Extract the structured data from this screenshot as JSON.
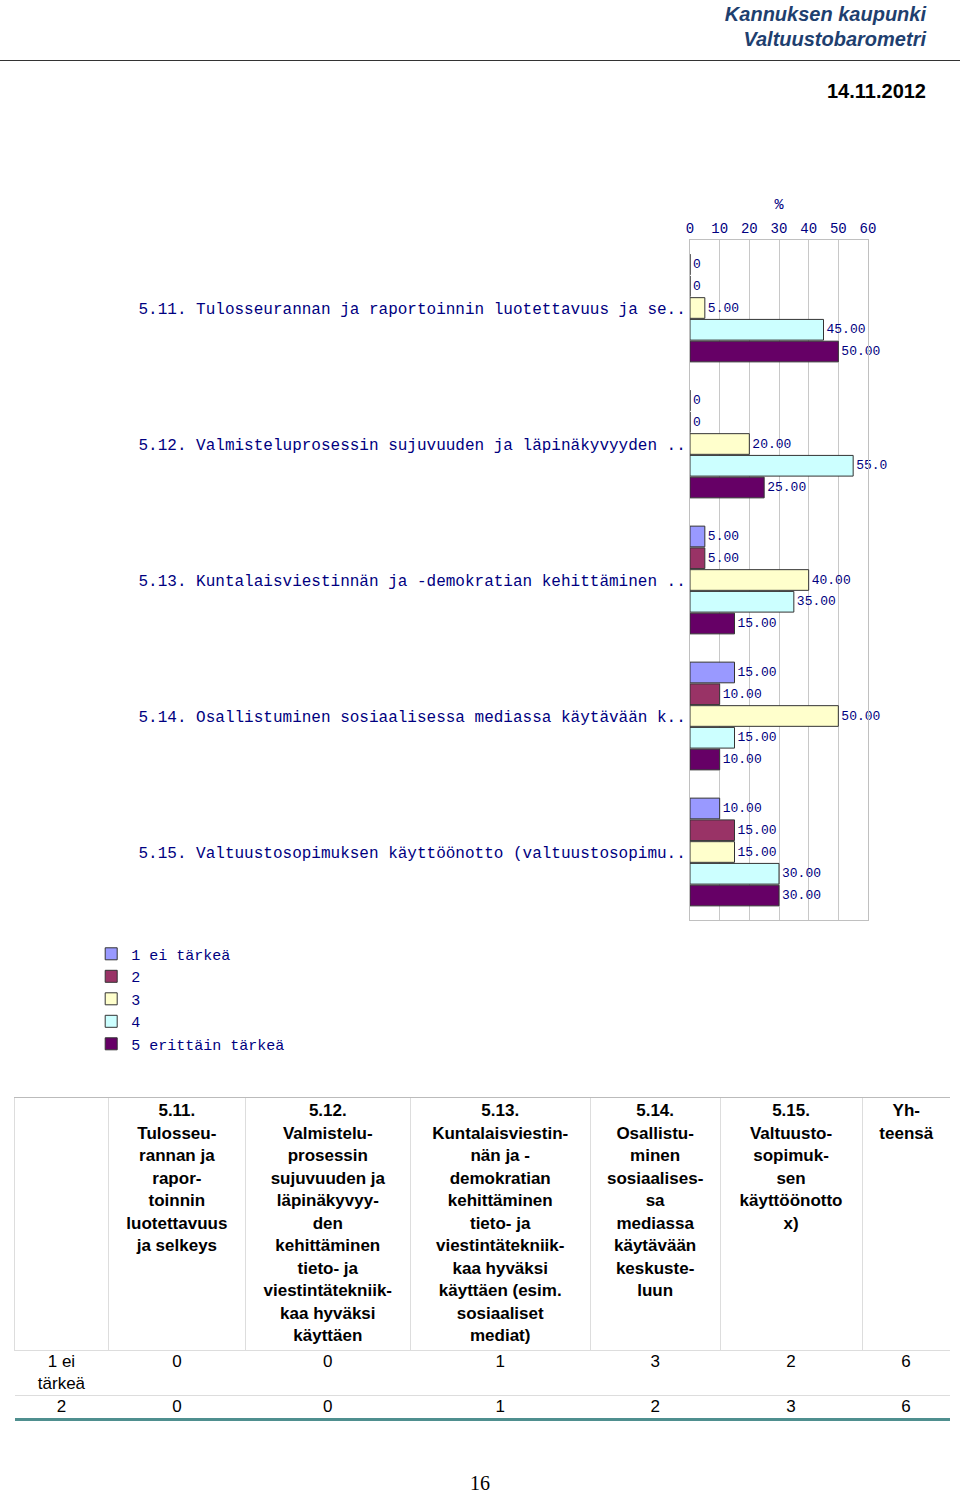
{
  "header": {
    "company": "Kannuksen kaupunki",
    "title": "Valtuustobarometri",
    "date": "14.11.2012"
  },
  "chart_data": {
    "type": "bar",
    "orientation": "horizontal",
    "x_label": "%",
    "categories": [
      "5.11. Tulosseurannan ja raportoinnin luotettavuus ja se..",
      "5.12. Valmisteluprosessin sujuvuuden ja läpinäkyvyyden ..",
      "5.13. Kuntalaisviestinnän ja -demokratian kehittäminen ..",
      "5.14. Osallistuminen sosiaalisessa mediassa käytävään k..",
      "5.15. Valtuustosopimuksen käyttöönotto (valtuustosopimu.."
    ],
    "series": [
      {
        "name": "1 ei tärkeä",
        "color": "#9999ff",
        "values": [
          0,
          0,
          5,
          15,
          10
        ],
        "value_labels": [
          "0",
          "0",
          "5.00",
          "15.00",
          "10.00"
        ]
      },
      {
        "name": "2",
        "color": "#993366",
        "values": [
          0,
          0,
          5,
          10,
          15
        ],
        "value_labels": [
          "0",
          "0",
          "5.00",
          "10.00",
          "15.00"
        ]
      },
      {
        "name": "3",
        "color": "#ffffcc",
        "values": [
          5,
          20,
          40,
          50,
          15
        ],
        "value_labels": [
          "5.00",
          "20.00",
          "40.00",
          "50.00",
          "15.00"
        ]
      },
      {
        "name": "4",
        "color": "#ccffff",
        "values": [
          45,
          55,
          35,
          15,
          30
        ],
        "value_labels": [
          "45.00",
          "55.0",
          "35.00",
          "15.00",
          "30.00"
        ]
      },
      {
        "name": "5 erittäin tärkeä",
        "color": "#660066",
        "values": [
          50,
          25,
          15,
          10,
          30
        ],
        "value_labels": [
          "50.00",
          "25.00",
          "15.00",
          "10.00",
          "30.00"
        ]
      }
    ],
    "xlim": [
      0,
      60
    ],
    "xticks": [
      0,
      10,
      20,
      30,
      40,
      50,
      60
    ],
    "grid": true,
    "data_labels": true,
    "legend": "bottom left"
  },
  "table": {
    "header": [
      [
        "5.11.",
        "Tulosseu-",
        "rannan ja",
        "rapor-",
        "toinnin",
        "luotettavuus",
        "ja selkeys"
      ],
      [
        "5.12.",
        "Valmistelu-",
        "prosessin",
        "sujuvuuden ja",
        "läpinäkyvyy-",
        "den",
        "kehittäminen",
        "tieto- ja",
        "viestintätekniik-",
        "kaa hyväksi",
        "käyttäen"
      ],
      [
        "5.13.",
        "Kuntalaisviestin-",
        "nän ja -",
        "demokratian",
        "kehittäminen",
        "tieto- ja",
        "viestintätekniik-",
        "kaa hyväksi",
        "käyttäen (esim.",
        "sosiaaliset",
        "mediat)"
      ],
      [
        "5.14.",
        "Osallistu-",
        "minen",
        "sosiaalises-",
        "sa",
        "mediassa",
        "käytävään",
        "keskuste-",
        "luun"
      ],
      [
        "5.15.",
        "Valtuusto-",
        "sopimuk-",
        "sen",
        "käyttöönotto",
        "x)"
      ],
      [
        "Yh-",
        "teensä"
      ]
    ],
    "rows": [
      {
        "label": [
          "1 ei",
          "tärkeä"
        ],
        "values": [
          0,
          0,
          1,
          3,
          2,
          6
        ]
      },
      {
        "label": [
          "2"
        ],
        "values": [
          0,
          0,
          1,
          2,
          3,
          6
        ]
      }
    ]
  },
  "page_number": "16"
}
